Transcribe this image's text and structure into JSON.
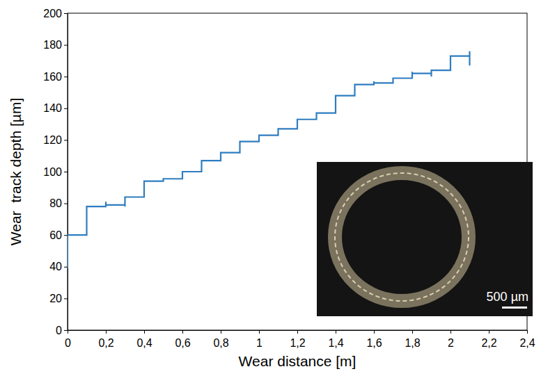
{
  "chart_data": {
    "type": "line",
    "x_label": "Wear distance [m]",
    "y_label": "Wear  track depth [µm]",
    "annotations": [
      "500 µm"
    ],
    "color": "#2e7dc0",
    "grid": false,
    "x": [
      0,
      0,
      0.1,
      0.1,
      0.2,
      0.2,
      0.2,
      0.3,
      0.3,
      0.3,
      0.4,
      0.4,
      0.5,
      0.5,
      0.6,
      0.6,
      0.7,
      0.7,
      0.8,
      0.8,
      0.9,
      0.9,
      1.0,
      1.0,
      1.1,
      1.1,
      1.2,
      1.2,
      1.3,
      1.3,
      1.4,
      1.4,
      1.5,
      1.5,
      1.6,
      1.6,
      1.6,
      1.7,
      1.7,
      1.8,
      1.8,
      1.8,
      1.9,
      1.9,
      1.9,
      2.0,
      2.0,
      2.1,
      2.1,
      2.1
    ],
    "values": [
      39,
      60,
      60,
      78,
      78,
      81,
      79,
      79,
      78,
      84,
      84,
      94,
      94,
      95.5,
      95.5,
      100,
      100,
      107,
      107,
      112,
      112,
      119,
      119,
      123,
      123,
      127,
      127,
      133,
      133,
      137,
      137,
      148,
      148,
      155,
      155,
      157,
      156,
      156,
      159,
      159,
      163,
      162,
      162,
      160,
      164,
      164,
      173,
      173,
      176,
      167
    ],
    "xlim": [
      0,
      2.4
    ],
    "xticks": [
      0,
      {
        "value": 0.2,
        "label": "0,2"
      },
      {
        "value": 0.4,
        "label": "0,4"
      },
      {
        "value": 0.6,
        "label": "0,6"
      },
      {
        "value": 0.8,
        "label": "0,8"
      },
      1,
      {
        "value": 1.2,
        "label": "1,2"
      },
      {
        "value": 1.4,
        "label": "1,4"
      },
      {
        "value": 1.6,
        "label": "1,6"
      },
      {
        "value": 1.8,
        "label": "1,8"
      },
      2,
      {
        "value": 2.2,
        "label": "2,2"
      },
      {
        "value": 2.4,
        "label": "2,4"
      }
    ],
    "ylim": [
      0,
      200
    ],
    "yticks": [
      0,
      20,
      40,
      60,
      80,
      100,
      120,
      140,
      160,
      180,
      200
    ]
  }
}
